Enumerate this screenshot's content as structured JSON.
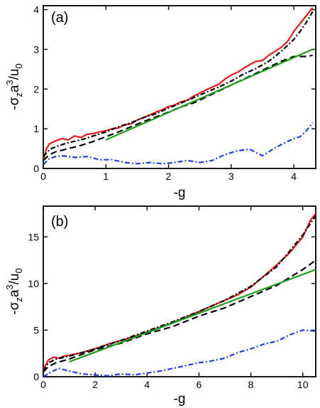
{
  "chart_data": [
    {
      "type": "line",
      "panel_label": "(a)",
      "xlabel": "-g",
      "ylabel_parts": {
        "base": "-σ",
        "sub1": "z",
        "mid": "a",
        "sup": "3",
        "slash": "/u",
        "sub2": "0"
      },
      "xlim": [
        0,
        4.35
      ],
      "ylim": [
        0,
        4.1
      ],
      "xticks": [
        0,
        1,
        2,
        3,
        4
      ],
      "yticks": [
        0,
        1,
        2,
        3,
        4
      ],
      "grid": false,
      "series": [
        {
          "color": "#e41a1c",
          "style": "solid",
          "x": [
            0,
            0.05,
            0.1,
            0.2,
            0.3,
            0.4,
            0.5,
            0.6,
            0.7,
            0.8,
            0.9,
            1.0,
            1.1,
            1.2,
            1.3,
            1.4,
            1.5,
            1.6,
            1.7,
            1.8,
            1.9,
            2.0,
            2.1,
            2.2,
            2.3,
            2.4,
            2.5,
            2.6,
            2.7,
            2.8,
            2.9,
            3.0,
            3.1,
            3.2,
            3.3,
            3.4,
            3.5,
            3.6,
            3.7,
            3.8,
            3.9,
            4.0,
            4.1,
            4.2,
            4.3
          ],
          "y": [
            0.2,
            0.5,
            0.62,
            0.7,
            0.75,
            0.72,
            0.82,
            0.78,
            0.86,
            0.88,
            0.92,
            0.95,
            1.0,
            1.02,
            1.1,
            1.12,
            1.22,
            1.28,
            1.35,
            1.42,
            1.48,
            1.56,
            1.6,
            1.68,
            1.72,
            1.82,
            1.9,
            1.98,
            2.05,
            2.12,
            2.25,
            2.35,
            2.42,
            2.52,
            2.62,
            2.7,
            2.72,
            2.85,
            2.95,
            3.05,
            3.2,
            3.45,
            3.65,
            3.85,
            4.05
          ]
        },
        {
          "color": "#000000",
          "style": "dashdot",
          "x": [
            0,
            0.1,
            0.2,
            0.4,
            0.6,
            0.8,
            1.0,
            1.2,
            1.4,
            1.6,
            1.8,
            2.0,
            2.2,
            2.4,
            2.6,
            2.8,
            3.0,
            3.2,
            3.4,
            3.6,
            3.8,
            4.0,
            4.1,
            4.2,
            4.3
          ],
          "y": [
            0.3,
            0.48,
            0.55,
            0.65,
            0.72,
            0.82,
            0.92,
            1.05,
            1.15,
            1.28,
            1.38,
            1.52,
            1.65,
            1.78,
            1.92,
            2.05,
            2.2,
            2.38,
            2.52,
            2.7,
            2.95,
            3.25,
            3.45,
            3.68,
            3.95
          ]
        },
        {
          "color": "#000000",
          "style": "dashed",
          "x": [
            0,
            0.1,
            0.2,
            0.4,
            0.6,
            0.8,
            1.0,
            1.2,
            1.4,
            1.6,
            1.8,
            2.0,
            2.2,
            2.4,
            2.6,
            2.8,
            3.0,
            3.2,
            3.4,
            3.6,
            3.8,
            4.0,
            4.2,
            4.3
          ],
          "y": [
            0.2,
            0.35,
            0.42,
            0.5,
            0.58,
            0.68,
            0.8,
            0.92,
            1.05,
            1.18,
            1.3,
            1.42,
            1.55,
            1.65,
            1.8,
            1.95,
            2.1,
            2.25,
            2.4,
            2.55,
            2.7,
            2.82,
            2.82,
            2.85
          ]
        },
        {
          "color": "#1a9e1a",
          "style": "solid",
          "x": [
            1.0,
            4.3
          ],
          "y": [
            0.72,
            3.0
          ]
        },
        {
          "color": "#1f3fe0",
          "style": "dashdot",
          "x": [
            0,
            0.1,
            0.2,
            0.3,
            0.5,
            0.7,
            0.9,
            1.1,
            1.3,
            1.5,
            1.7,
            1.9,
            2.1,
            2.3,
            2.5,
            2.7,
            2.9,
            3.1,
            3.3,
            3.5,
            3.7,
            3.9,
            4.0,
            4.1,
            4.2,
            4.3
          ],
          "y": [
            0.1,
            0.25,
            0.3,
            0.32,
            0.28,
            0.3,
            0.22,
            0.22,
            0.15,
            0.12,
            0.15,
            0.12,
            0.15,
            0.2,
            0.15,
            0.2,
            0.35,
            0.45,
            0.48,
            0.32,
            0.52,
            0.68,
            0.75,
            0.8,
            0.95,
            1.15
          ]
        }
      ]
    },
    {
      "type": "line",
      "panel_label": "(b)",
      "xlabel": "-g",
      "ylabel_parts": {
        "base": "-σ",
        "sub1": "z",
        "mid": "a",
        "sup": "3",
        "slash": "/u",
        "sub2": "0"
      },
      "xlim": [
        0,
        10.5
      ],
      "ylim": [
        0,
        18.3
      ],
      "xticks": [
        0,
        2,
        4,
        6,
        8,
        10
      ],
      "yticks": [
        0,
        5,
        10,
        15
      ],
      "grid": false,
      "series": [
        {
          "color": "#e41a1c",
          "style": "solid",
          "x": [
            0,
            0.2,
            0.4,
            0.6,
            0.8,
            1.0,
            1.5,
            2.0,
            2.5,
            3.0,
            3.5,
            4.0,
            4.5,
            5.0,
            5.5,
            6.0,
            6.5,
            7.0,
            7.5,
            8.0,
            8.5,
            9.0,
            9.5,
            10.0,
            10.3,
            10.5
          ],
          "y": [
            0.8,
            1.8,
            2.1,
            2.0,
            2.2,
            2.3,
            2.6,
            3.0,
            3.5,
            3.9,
            4.3,
            4.8,
            5.3,
            5.8,
            6.4,
            7.0,
            7.6,
            8.2,
            8.8,
            9.6,
            10.8,
            12.0,
            13.3,
            15.0,
            16.8,
            17.5
          ]
        },
        {
          "color": "#000000",
          "style": "dashdot",
          "x": [
            0,
            0.2,
            0.5,
            1.0,
            1.5,
            2.0,
            3.0,
            4.0,
            5.0,
            6.0,
            7.0,
            8.0,
            9.0,
            10.0,
            10.5
          ],
          "y": [
            0.6,
            1.5,
            1.9,
            2.2,
            2.6,
            3.0,
            3.9,
            4.9,
            5.9,
            7.0,
            8.2,
            9.7,
            11.8,
            15.2,
            17.3
          ]
        },
        {
          "color": "#000000",
          "style": "dashed",
          "x": [
            0,
            0.2,
            0.5,
            1.0,
            1.5,
            2.0,
            3.0,
            4.0,
            5.0,
            6.0,
            7.0,
            8.0,
            9.0,
            10.0,
            10.5
          ],
          "y": [
            0.5,
            1.1,
            1.5,
            1.9,
            2.4,
            2.9,
            3.6,
            4.6,
            5.4,
            6.5,
            7.4,
            8.6,
            9.8,
            11.5,
            12.5
          ]
        },
        {
          "color": "#1a9e1a",
          "style": "solid",
          "x": [
            1.0,
            10.5
          ],
          "y": [
            1.6,
            11.5
          ]
        },
        {
          "color": "#1f3fe0",
          "style": "dashdot",
          "x": [
            0,
            0.3,
            0.6,
            1.0,
            1.5,
            2.0,
            2.5,
            3.0,
            3.5,
            4.0,
            4.5,
            5.0,
            5.5,
            6.0,
            6.5,
            7.0,
            7.5,
            8.0,
            8.5,
            9.0,
            9.5,
            10.0,
            10.5
          ],
          "y": [
            0.0,
            0.5,
            0.9,
            0.6,
            0.3,
            0.2,
            0.1,
            0.3,
            0.2,
            0.4,
            0.6,
            0.9,
            1.2,
            1.5,
            1.7,
            2.0,
            2.6,
            3.0,
            3.5,
            3.8,
            4.5,
            5.0,
            4.9
          ]
        }
      ]
    }
  ]
}
